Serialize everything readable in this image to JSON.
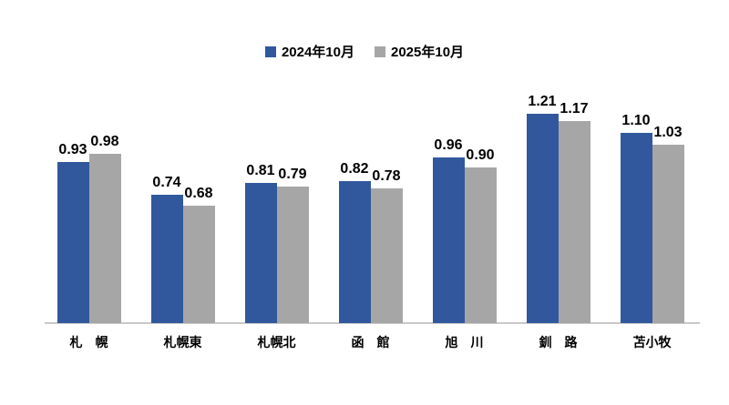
{
  "chart_data": {
    "type": "bar",
    "title": "",
    "categories": [
      "札　幌",
      "札幌東",
      "札幌北",
      "函　館",
      "旭　川",
      "釧　路",
      "苫小牧"
    ],
    "series": [
      {
        "name": "2024年10月",
        "color": "#31589d",
        "values": [
          0.93,
          0.74,
          0.81,
          0.82,
          0.96,
          1.21,
          1.1
        ],
        "labels": [
          "0.93",
          "0.74",
          "0.81",
          "0.82",
          "0.96",
          "1.21",
          "1.10"
        ]
      },
      {
        "name": "2025年10月",
        "color": "#a6a6a6",
        "values": [
          0.98,
          0.68,
          0.79,
          0.78,
          0.9,
          1.17,
          1.03
        ],
        "labels": [
          "0.98",
          "0.68",
          "0.79",
          "0.78",
          "0.90",
          "1.17",
          "1.03"
        ]
      }
    ],
    "xlabel": "",
    "ylabel": "",
    "ylim": [
      0,
      1.3
    ],
    "grid": false,
    "y_axis_visible": false,
    "legend_position": "top",
    "value_labels": true,
    "axis_line_color": "#c9c9c9",
    "text_color": "#000000",
    "background_color": "#ffffff"
  }
}
